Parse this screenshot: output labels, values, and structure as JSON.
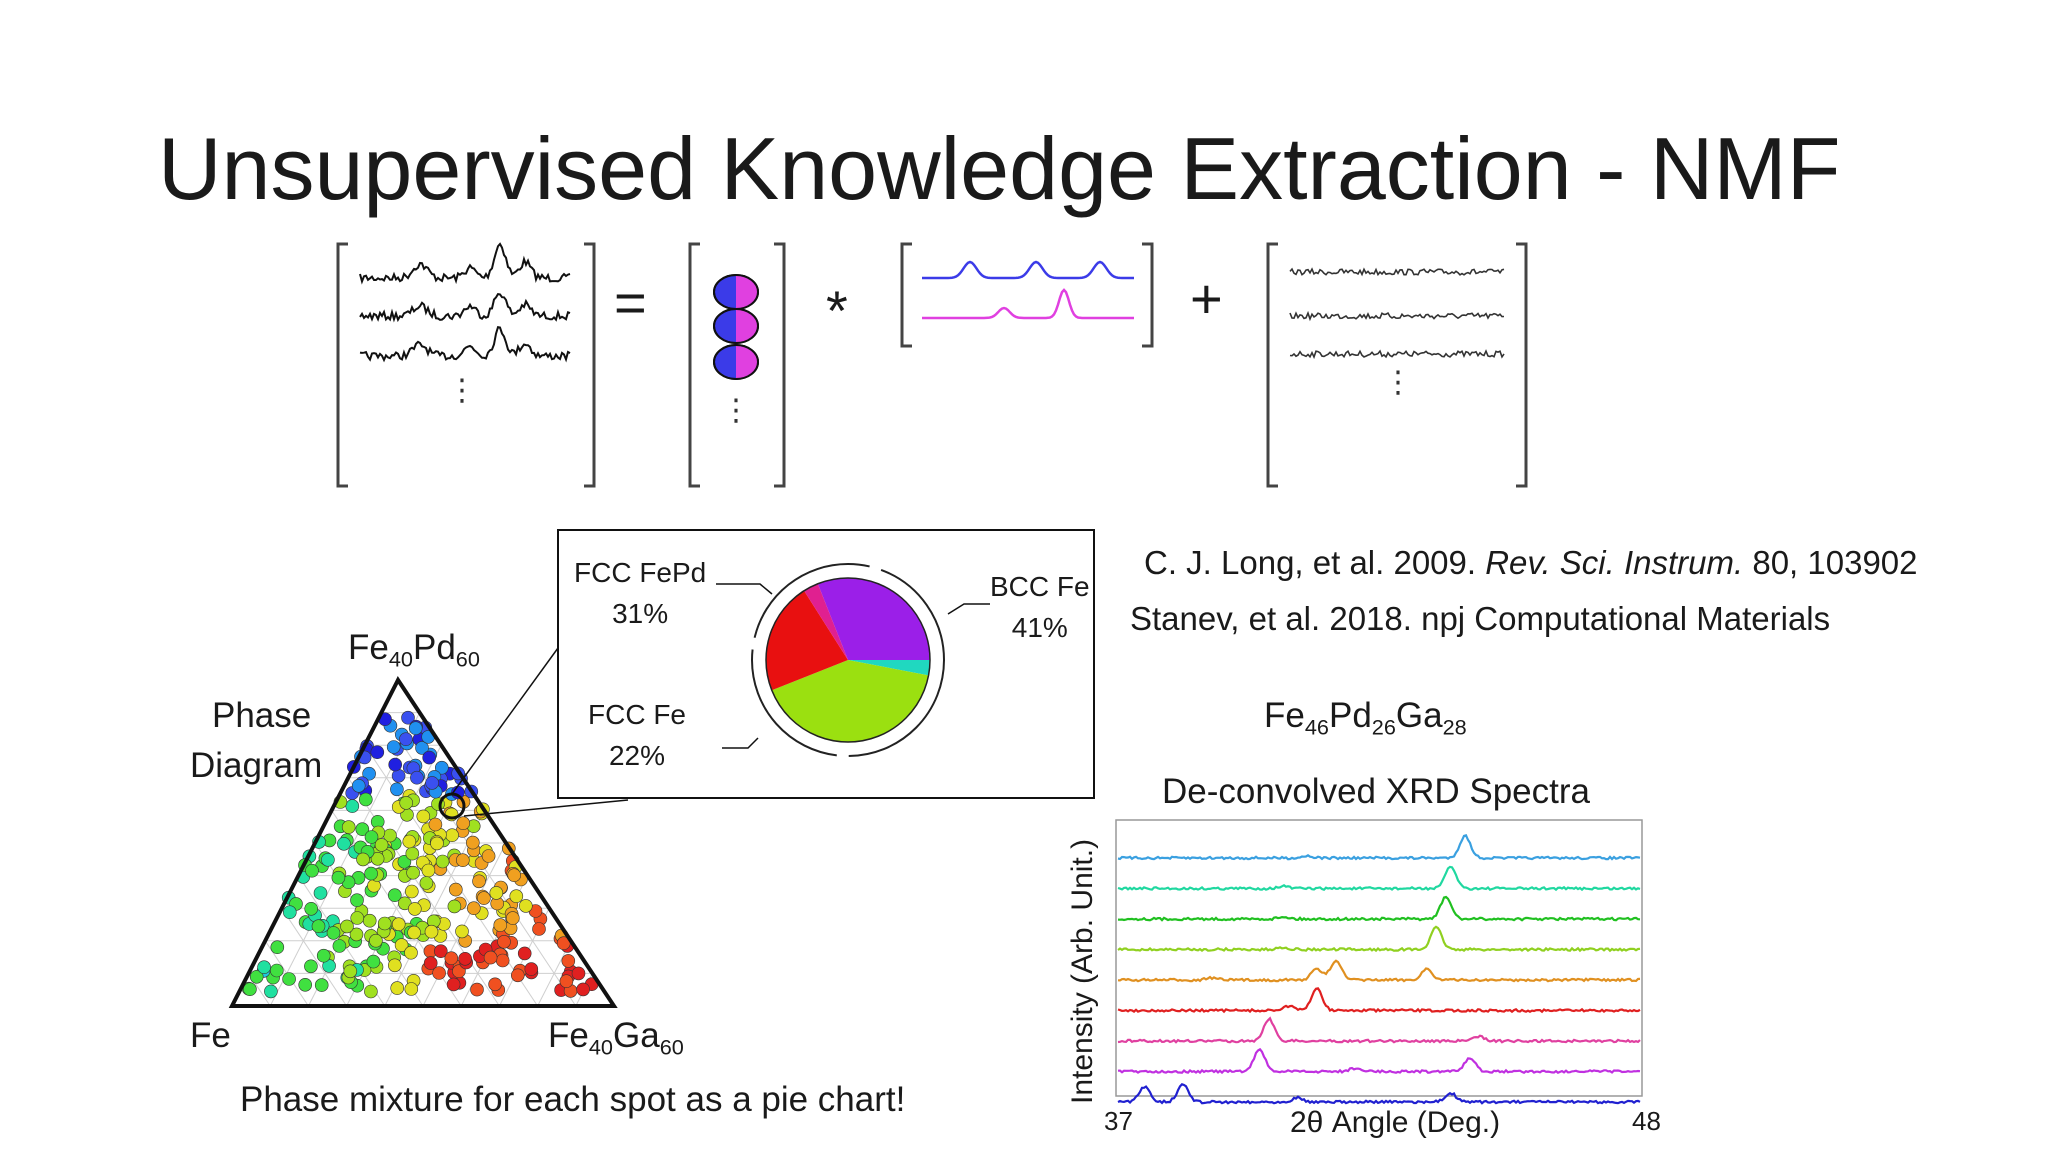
{
  "slide": {
    "title": "Unsupervised Knowledge Extraction - NMF"
  },
  "equation": {
    "equals": "=",
    "times": "*",
    "plus": "+",
    "dots": "⋮",
    "colors": {
      "basis_blue": "#3b3be8",
      "basis_magenta": "#e040e0",
      "signal": "#111111"
    }
  },
  "phase_diagram": {
    "label_line1": "Phase",
    "label_line2": "Diagram",
    "apex_top": {
      "base": "Fe",
      "s1": "40",
      "mid": "Pd",
      "s2": "60"
    },
    "apex_left": "Fe",
    "apex_right": {
      "base": "Fe",
      "s1": "40",
      "mid": "Ga",
      "s2": "60"
    },
    "caption": "Phase mixture for each spot as a pie chart!"
  },
  "pie_inset": {
    "fcc_fepd": {
      "name": "FCC FePd",
      "pct": "31%"
    },
    "fcc_fe": {
      "name": "FCC Fe",
      "pct": "22%"
    },
    "bcc_fe": {
      "name": "BCC Fe",
      "pct": "41%"
    }
  },
  "references": {
    "ref1_pre": "C. J. Long, et al. 2009. ",
    "ref1_journal": "Rev. Sci. Instrum.",
    "ref1_post": " 80, 103902",
    "ref2": "Stanev, et al. 2018. npj Computational Materials"
  },
  "xrd": {
    "composition": {
      "e1": "Fe",
      "n1": "46",
      "e2": "Pd",
      "n2": "26",
      "e3": "Ga",
      "n3": "28"
    },
    "title": "De-convolved XRD Spectra",
    "ylabel": "Intensity (Arb. Unit.)",
    "xlabel": "2θ Angle (Deg.)",
    "xmin_label": "37",
    "xmax_label": "48"
  },
  "chart_data": [
    {
      "type": "pie",
      "categories": [
        "FCC FePd",
        "FCC Fe",
        "BCC Fe"
      ],
      "values": [
        31,
        22,
        41
      ],
      "colors": [
        "#9b1fe8",
        "#e81010",
        "#9be010"
      ],
      "minor_slices": [
        {
          "color": "#e02090"
        },
        {
          "color": "#20d8c0"
        }
      ]
    },
    {
      "type": "line",
      "title": "De-convolved XRD Spectra",
      "xlabel": "2θ Angle (Deg.)",
      "ylabel": "Intensity (Arb. Unit.)",
      "xlim": [
        37,
        48
      ],
      "series": [
        {
          "color": "#3aa0e0",
          "peaks": [
            [
              44.3,
              1.0
            ],
            [
              41.0,
              0.1
            ]
          ]
        },
        {
          "color": "#20d8a0",
          "peaks": [
            [
              44.0,
              1.0
            ],
            [
              40.5,
              0.1
            ]
          ]
        },
        {
          "color": "#20c020",
          "peaks": [
            [
              43.9,
              1.0
            ],
            [
              40.5,
              0.1
            ]
          ]
        },
        {
          "color": "#90d020",
          "peaks": [
            [
              43.7,
              1.0
            ],
            [
              40.5,
              0.1
            ]
          ]
        },
        {
          "color": "#e09020",
          "peaks": [
            [
              41.6,
              0.9
            ],
            [
              41.2,
              0.5
            ],
            [
              43.5,
              0.5
            ],
            [
              39.0,
              0.1
            ]
          ]
        },
        {
          "color": "#e02020",
          "peaks": [
            [
              41.2,
              1.0
            ],
            [
              40.6,
              0.2
            ]
          ]
        },
        {
          "color": "#e040a0",
          "peaks": [
            [
              40.2,
              1.0
            ],
            [
              44.6,
              0.2
            ]
          ]
        },
        {
          "color": "#c030e0",
          "peaks": [
            [
              40.0,
              1.0
            ],
            [
              44.4,
              0.6
            ],
            [
              42.0,
              0.15
            ]
          ]
        },
        {
          "color": "#2020d0",
          "peaks": [
            [
              37.6,
              0.7
            ],
            [
              38.4,
              0.8
            ],
            [
              40.8,
              0.2
            ],
            [
              44.0,
              0.4
            ]
          ]
        }
      ]
    }
  ]
}
